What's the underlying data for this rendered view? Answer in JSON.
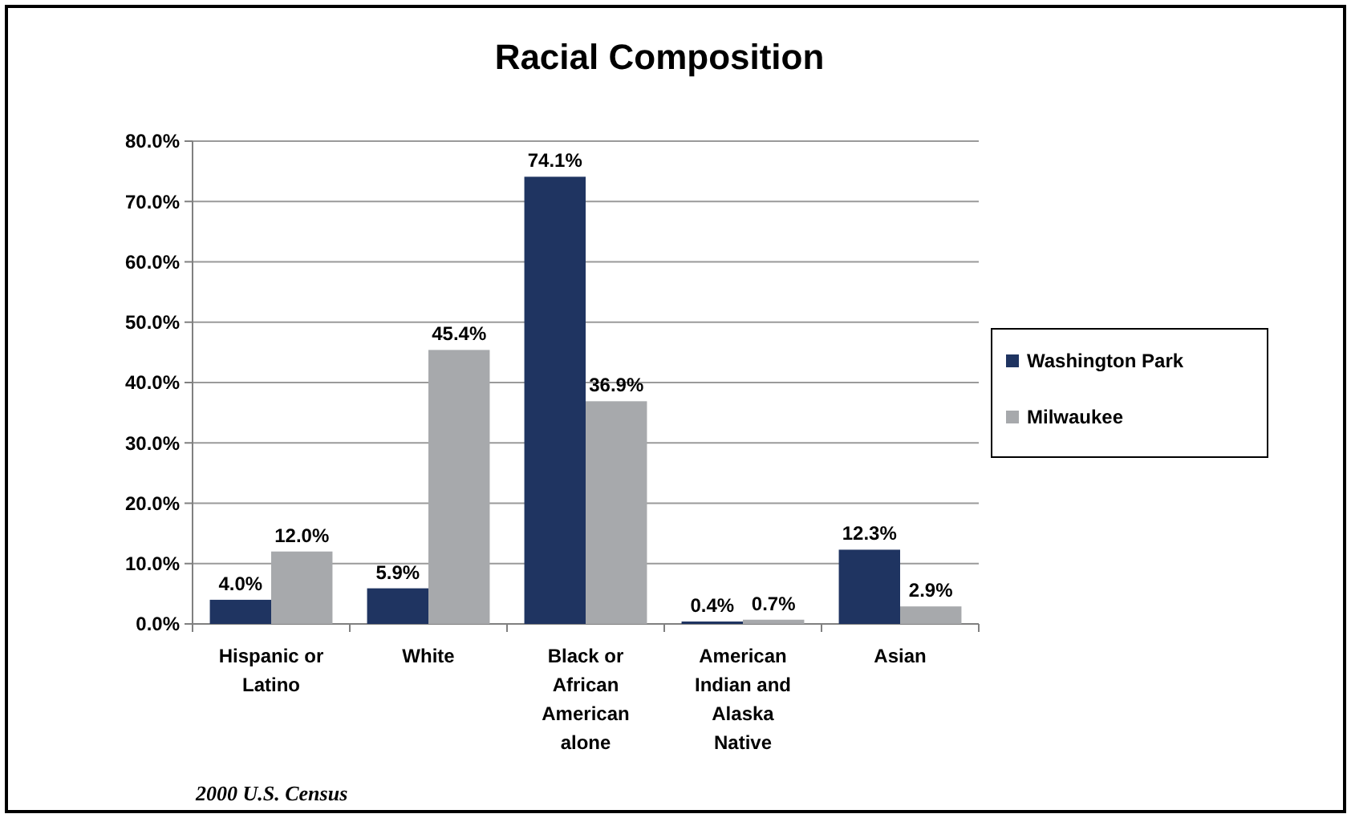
{
  "chart_data": {
    "type": "bar",
    "title": "Racial Composition",
    "categories": [
      "Hispanic or Latino",
      "White",
      "Black or African American alone",
      "American Indian and Alaska Native",
      "Asian"
    ],
    "series": [
      {
        "name": "Washington Park",
        "color": "#1f3461",
        "values": [
          4.0,
          5.9,
          74.1,
          0.4,
          12.3
        ],
        "value_labels": [
          "4.0%",
          "5.9%",
          "74.1%",
          "0.4%",
          "12.3%"
        ]
      },
      {
        "name": "Milwaukee",
        "color": "#a7a9ac",
        "values": [
          12.0,
          45.4,
          36.9,
          0.7,
          2.9
        ],
        "value_labels": [
          "12.0%",
          "45.4%",
          "36.9%",
          "0.7%",
          "2.9%"
        ]
      }
    ],
    "ylim": [
      0,
      80
    ],
    "yticks": [
      {
        "value": 0,
        "label": "0.0%"
      },
      {
        "value": 10,
        "label": "10.0%"
      },
      {
        "value": 20,
        "label": "20.0%"
      },
      {
        "value": 30,
        "label": "30.0%"
      },
      {
        "value": 40,
        "label": "40.0%"
      },
      {
        "value": 50,
        "label": "50.0%"
      },
      {
        "value": 60,
        "label": "60.0%"
      },
      {
        "value": 70,
        "label": "70.0%"
      },
      {
        "value": 80,
        "label": "80.0%"
      }
    ],
    "grid": "y",
    "legend": "right",
    "annotations": [
      "2000 U.S. Census"
    ]
  }
}
